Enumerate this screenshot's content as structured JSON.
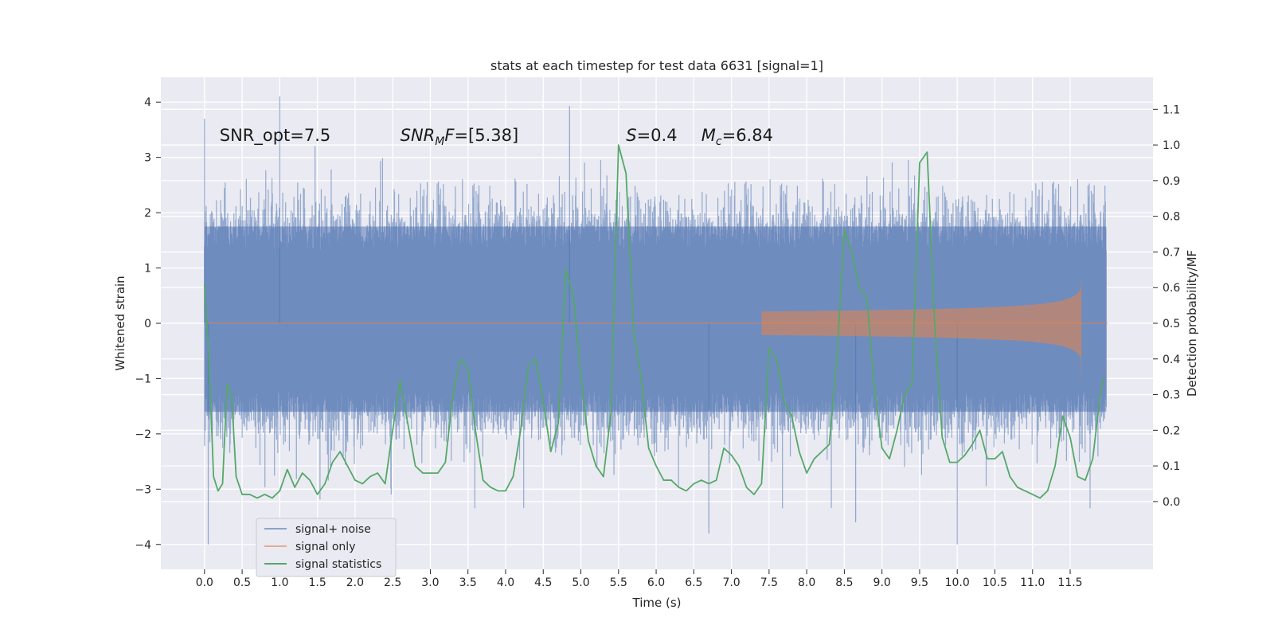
{
  "chart_data": {
    "type": "line",
    "title": "stats at each timestep for test data 6631 [signal=1]",
    "xlabel": "Time (s)",
    "ylabel": "Whitened strain",
    "y2label": "Detection probability/MF",
    "xlim": [
      -0.58,
      12.6
    ],
    "ylim": [
      -4.45,
      4.45
    ],
    "y2lim": [
      -0.19,
      1.19
    ],
    "x_ticks": [
      0.0,
      0.5,
      1.0,
      1.5,
      2.0,
      2.5,
      3.0,
      3.5,
      4.0,
      4.5,
      5.0,
      5.5,
      6.0,
      6.5,
      7.0,
      7.5,
      8.0,
      8.5,
      9.0,
      9.5,
      10.0,
      10.5,
      11.0,
      11.5
    ],
    "x_tick_labels": [
      "0.0",
      "0.5",
      "1.0",
      "1.5",
      "2.0",
      "2.5",
      "3.0",
      "3.5",
      "4.0",
      "4.5",
      "5.0",
      "5.5",
      "6.0",
      "6.5",
      "7.0",
      "7.5",
      "8.0",
      "8.5",
      "9.0",
      "9.5",
      "10.0",
      "10.5",
      "11.0",
      "11.5"
    ],
    "y_ticks": [
      -4,
      -3,
      -2,
      -1,
      0,
      1,
      2,
      3,
      4
    ],
    "y_tick_labels": [
      "−4",
      "−3",
      "−2",
      "−1",
      "0",
      "1",
      "2",
      "3",
      "4"
    ],
    "y2_ticks": [
      0.0,
      0.1,
      0.2,
      0.3,
      0.4,
      0.5,
      0.6,
      0.7,
      0.8,
      0.9,
      1.0,
      1.1
    ],
    "y2_tick_labels": [
      "0.0",
      "0.1",
      "0.2",
      "0.3",
      "0.4",
      "0.5",
      "0.6",
      "0.7",
      "0.8",
      "0.9",
      "1.0",
      "1.1"
    ],
    "grid": true,
    "legend_position": "lower-left",
    "annotations": [
      {
        "text": "SNR_opt=7.5",
        "x": 0.2,
        "y": 3.3
      },
      {
        "text": "SNR_MF=[5.38]",
        "main": "SNR",
        "sub": "M",
        "rest": "F=[5.38]",
        "x": 2.6,
        "y": 3.3
      },
      {
        "text": "S=0.4",
        "main": "S",
        "rest": "=0.4",
        "x": 5.6,
        "y": 3.3
      },
      {
        "text": "M_c=6.84",
        "main": "M",
        "sub": "c",
        "rest": "=6.84",
        "x": 6.6,
        "y": 3.3
      }
    ],
    "series": [
      {
        "name": "signal+ noise",
        "kind": "noise-band",
        "color": "#4c72b0",
        "x_range": [
          0.0,
          11.98
        ],
        "typical_envelope": [
          -2.2,
          2.4
        ],
        "max": 4.1,
        "min": -4.0
      },
      {
        "name": "signal only",
        "kind": "chirp",
        "color": "#dd8452",
        "x_range": [
          0.0,
          11.65
        ],
        "peak_time": 11.65,
        "peak_amplitude": 0.82,
        "visible_from": 7.4
      },
      {
        "name": "signal statistics",
        "kind": "line",
        "color": "#55a868",
        "axis": "right",
        "x": [
          0.0,
          0.06,
          0.12,
          0.18,
          0.24,
          0.3,
          0.36,
          0.42,
          0.5,
          0.6,
          0.7,
          0.8,
          0.9,
          1.0,
          1.1,
          1.2,
          1.3,
          1.4,
          1.5,
          1.6,
          1.7,
          1.8,
          1.9,
          2.0,
          2.1,
          2.2,
          2.3,
          2.4,
          2.5,
          2.6,
          2.7,
          2.8,
          2.9,
          3.0,
          3.1,
          3.2,
          3.3,
          3.4,
          3.5,
          3.6,
          3.7,
          3.8,
          3.9,
          4.0,
          4.1,
          4.2,
          4.3,
          4.4,
          4.5,
          4.6,
          4.7,
          4.8,
          4.9,
          5.0,
          5.1,
          5.2,
          5.3,
          5.4,
          5.5,
          5.6,
          5.7,
          5.8,
          5.9,
          6.0,
          6.1,
          6.2,
          6.3,
          6.4,
          6.5,
          6.6,
          6.7,
          6.8,
          6.9,
          7.0,
          7.1,
          7.2,
          7.3,
          7.4,
          7.5,
          7.6,
          7.7,
          7.8,
          7.9,
          8.0,
          8.1,
          8.2,
          8.3,
          8.4,
          8.5,
          8.6,
          8.7,
          8.8,
          8.9,
          9.0,
          9.1,
          9.2,
          9.3,
          9.4,
          9.5,
          9.6,
          9.7,
          9.8,
          9.9,
          10.0,
          10.1,
          10.2,
          10.3,
          10.4,
          10.5,
          10.6,
          10.7,
          10.8,
          10.9,
          11.0,
          11.1,
          11.2,
          11.3,
          11.4,
          11.5,
          11.6,
          11.7,
          11.8,
          11.9,
          11.95
        ],
        "values": [
          0.61,
          0.4,
          0.07,
          0.03,
          0.05,
          0.33,
          0.3,
          0.07,
          0.02,
          0.02,
          0.01,
          0.02,
          0.01,
          0.03,
          0.09,
          0.04,
          0.08,
          0.06,
          0.02,
          0.05,
          0.11,
          0.14,
          0.1,
          0.06,
          0.05,
          0.07,
          0.08,
          0.05,
          0.2,
          0.34,
          0.22,
          0.1,
          0.08,
          0.08,
          0.08,
          0.11,
          0.3,
          0.4,
          0.37,
          0.2,
          0.06,
          0.04,
          0.03,
          0.03,
          0.07,
          0.2,
          0.38,
          0.4,
          0.28,
          0.14,
          0.22,
          0.65,
          0.58,
          0.35,
          0.17,
          0.1,
          0.07,
          0.25,
          1.0,
          0.92,
          0.48,
          0.35,
          0.15,
          0.1,
          0.06,
          0.06,
          0.04,
          0.03,
          0.05,
          0.06,
          0.05,
          0.06,
          0.15,
          0.13,
          0.1,
          0.04,
          0.02,
          0.05,
          0.43,
          0.4,
          0.28,
          0.24,
          0.14,
          0.08,
          0.12,
          0.14,
          0.16,
          0.4,
          0.76,
          0.7,
          0.6,
          0.57,
          0.32,
          0.15,
          0.12,
          0.2,
          0.3,
          0.33,
          0.95,
          0.98,
          0.5,
          0.18,
          0.11,
          0.11,
          0.13,
          0.16,
          0.2,
          0.12,
          0.12,
          0.14,
          0.07,
          0.04,
          0.03,
          0.02,
          0.01,
          0.03,
          0.1,
          0.24,
          0.18,
          0.07,
          0.06,
          0.12,
          0.3,
          0.35
        ]
      }
    ]
  },
  "legend": {
    "items": [
      {
        "label": "signal+ noise",
        "color": "#4c72b0"
      },
      {
        "label": "signal only",
        "color": "#dd8452"
      },
      {
        "label": "signal statistics",
        "color": "#55a868"
      }
    ]
  }
}
